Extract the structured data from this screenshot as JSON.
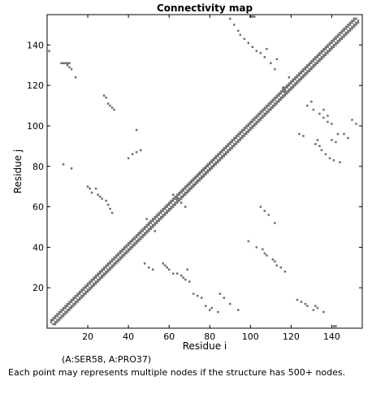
{
  "caption": {
    "selection": "(A:SER58, A:PRO37)",
    "info": "Each point may represents multiple nodes if the structure has 500+ nodes."
  },
  "chart_data": {
    "type": "scatter",
    "title": "Connectivity map",
    "xlabel": "Residue i",
    "ylabel": "Residue j",
    "xlim": [
      0,
      155
    ],
    "ylim": [
      0,
      155
    ],
    "xticks": [
      20,
      40,
      60,
      80,
      100,
      120,
      140
    ],
    "yticks": [
      20,
      40,
      60,
      80,
      100,
      120,
      140
    ],
    "grid": false,
    "marker_color": "#6e6e6e",
    "diagonal_band": {
      "from": 2,
      "to": 153,
      "half_width": 2
    },
    "points": [
      [
        7,
        131
      ],
      [
        8,
        131
      ],
      [
        9,
        131
      ],
      [
        10,
        131
      ],
      [
        11,
        131
      ],
      [
        10,
        130
      ],
      [
        11,
        129
      ],
      [
        12,
        128
      ],
      [
        14,
        124
      ],
      [
        28,
        115
      ],
      [
        29,
        114
      ],
      [
        30,
        111
      ],
      [
        31,
        110
      ],
      [
        32,
        109
      ],
      [
        33,
        108
      ],
      [
        44,
        98
      ],
      [
        8,
        81
      ],
      [
        12,
        79
      ],
      [
        20,
        70
      ],
      [
        21,
        69
      ],
      [
        22,
        67
      ],
      [
        24,
        69
      ],
      [
        25,
        66
      ],
      [
        26,
        65
      ],
      [
        27,
        64
      ],
      [
        29,
        63
      ],
      [
        30,
        61
      ],
      [
        31,
        59
      ],
      [
        32,
        57
      ],
      [
        49,
        54
      ],
      [
        50,
        52
      ],
      [
        51,
        50
      ],
      [
        53,
        48
      ],
      [
        62,
        66
      ],
      [
        64,
        64
      ],
      [
        66,
        62
      ],
      [
        68,
        60
      ],
      [
        57,
        32
      ],
      [
        58,
        31
      ],
      [
        59,
        30
      ],
      [
        60,
        29
      ],
      [
        62,
        27
      ],
      [
        64,
        27
      ],
      [
        66,
        26
      ],
      [
        67,
        25
      ],
      [
        68,
        24
      ],
      [
        70,
        23
      ],
      [
        69,
        29
      ],
      [
        48,
        32
      ],
      [
        50,
        30
      ],
      [
        52,
        29
      ],
      [
        72,
        17
      ],
      [
        74,
        16
      ],
      [
        76,
        15
      ],
      [
        78,
        11
      ],
      [
        80,
        9
      ],
      [
        81,
        10
      ],
      [
        84,
        8
      ],
      [
        99,
        43
      ],
      [
        103,
        40
      ],
      [
        106,
        39
      ],
      [
        107,
        37
      ],
      [
        111,
        34
      ],
      [
        112,
        33
      ],
      [
        113,
        31
      ],
      [
        115,
        30
      ],
      [
        117,
        28
      ],
      [
        123,
        14
      ],
      [
        125,
        13
      ],
      [
        127,
        12
      ],
      [
        128,
        11
      ],
      [
        131,
        9
      ],
      [
        132,
        11
      ],
      [
        133,
        10
      ],
      [
        136,
        8
      ],
      [
        141,
        1
      ],
      [
        142,
        1
      ],
      [
        90,
        153
      ],
      [
        92,
        150
      ],
      [
        94,
        147
      ],
      [
        95,
        145
      ],
      [
        97,
        143
      ],
      [
        99,
        141
      ],
      [
        101,
        139
      ],
      [
        103,
        137
      ],
      [
        105,
        136
      ],
      [
        107,
        134
      ],
      [
        108,
        138
      ],
      [
        110,
        131
      ],
      [
        112,
        128
      ],
      [
        113,
        133
      ],
      [
        116,
        119
      ],
      [
        117,
        117
      ],
      [
        118,
        119
      ],
      [
        119,
        124
      ],
      [
        120,
        118
      ],
      [
        128,
        110
      ],
      [
        130,
        112
      ],
      [
        131,
        108
      ],
      [
        134,
        106
      ],
      [
        136,
        104
      ],
      [
        138,
        102
      ],
      [
        140,
        101
      ],
      [
        124,
        96
      ],
      [
        126,
        95
      ],
      [
        132,
        91
      ],
      [
        133,
        93
      ],
      [
        134,
        90
      ],
      [
        135,
        88
      ],
      [
        137,
        86
      ],
      [
        139,
        84
      ],
      [
        141,
        83
      ],
      [
        144,
        82
      ],
      [
        136,
        108
      ],
      [
        138,
        105
      ],
      [
        140,
        93
      ],
      [
        142,
        92
      ],
      [
        143,
        96
      ],
      [
        146,
        96
      ],
      [
        148,
        94
      ],
      [
        150,
        103
      ],
      [
        152,
        101
      ],
      [
        1,
        137
      ],
      [
        100,
        154
      ],
      [
        101,
        154
      ],
      [
        102,
        154
      ],
      [
        108,
        36
      ],
      [
        85,
        17
      ],
      [
        87,
        15
      ],
      [
        90,
        12
      ],
      [
        94,
        9
      ],
      [
        40,
        84
      ],
      [
        42,
        86
      ],
      [
        44,
        87
      ],
      [
        46,
        88
      ],
      [
        105,
        60
      ],
      [
        107,
        58
      ],
      [
        109,
        56
      ],
      [
        112,
        52
      ]
    ]
  }
}
